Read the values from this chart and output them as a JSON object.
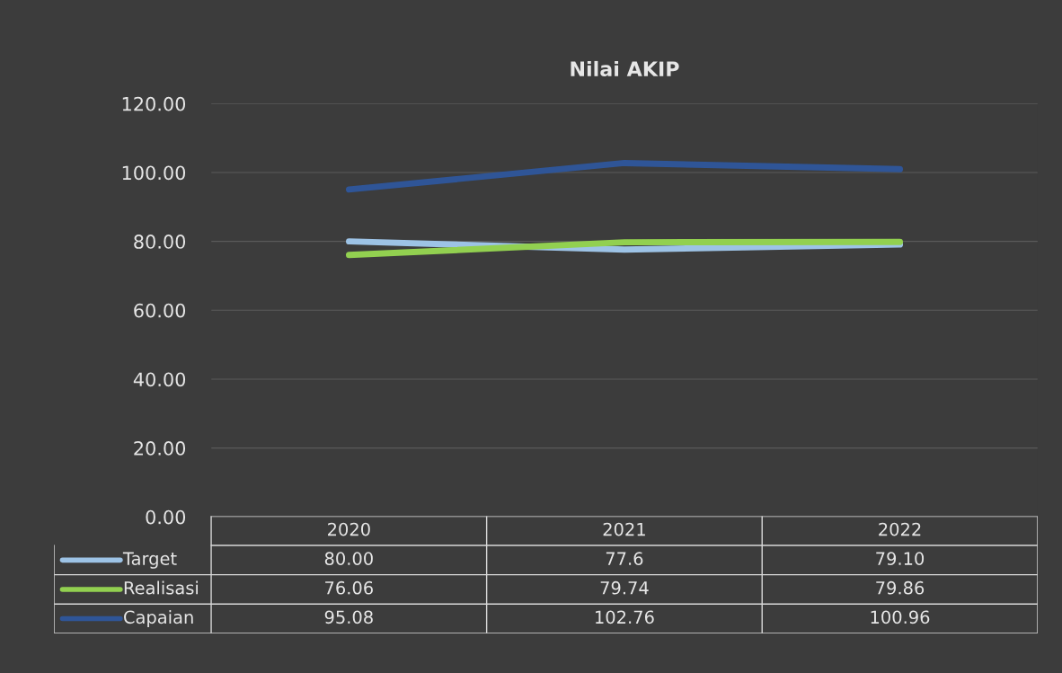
{
  "chart_data": {
    "type": "line",
    "title": "Nilai AKIP",
    "categories": [
      "2020",
      "2021",
      "2022"
    ],
    "series": [
      {
        "name": "Target",
        "color": "#9dc3e6",
        "values": [
          80.0,
          77.6,
          79.1
        ],
        "value_labels": [
          "80.00",
          "77.6",
          "79.10"
        ]
      },
      {
        "name": "Realisasi",
        "color": "#92d050",
        "values": [
          76.06,
          79.74,
          79.86
        ],
        "value_labels": [
          "76.06",
          "79.74",
          "79.86"
        ]
      },
      {
        "name": "Capaian",
        "color": "#2f5597",
        "values": [
          95.08,
          102.76,
          100.96
        ],
        "value_labels": [
          "95.08",
          "102.76",
          "100.96"
        ]
      }
    ],
    "ylim": [
      0,
      120
    ],
    "yticks": [
      {
        "value": 0,
        "label": "0.00"
      },
      {
        "value": 20,
        "label": "20.00"
      },
      {
        "value": 40,
        "label": "40.00"
      },
      {
        "value": 60,
        "label": "60.00"
      },
      {
        "value": 80,
        "label": "80.00"
      },
      {
        "value": 100,
        "label": "100.00"
      },
      {
        "value": 120,
        "label": "120.00"
      }
    ],
    "grid": "y",
    "legend": "bottom",
    "marker": "none",
    "line_style": "solid"
  }
}
